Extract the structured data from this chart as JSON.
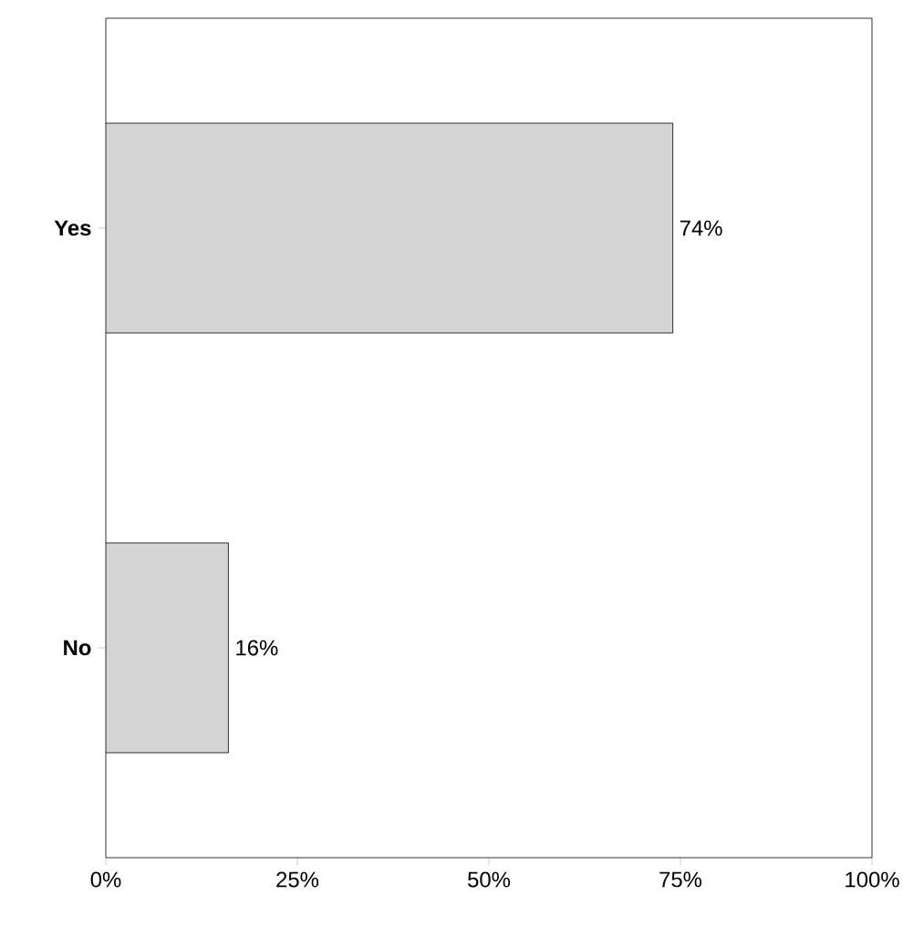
{
  "chart_data": {
    "type": "bar",
    "orientation": "horizontal",
    "categories": [
      "Yes",
      "No"
    ],
    "values": [
      74,
      16
    ],
    "value_labels": [
      "74%",
      "16%"
    ],
    "color": "#d4d4d4",
    "xlim": [
      0,
      100
    ],
    "xticks": [
      {
        "value": 0,
        "label": "0%"
      },
      {
        "value": 25,
        "label": "25%"
      },
      {
        "value": 50,
        "label": "50%"
      },
      {
        "value": 75,
        "label": "75%"
      },
      {
        "value": 100,
        "label": "100%"
      }
    ],
    "grid": false
  }
}
